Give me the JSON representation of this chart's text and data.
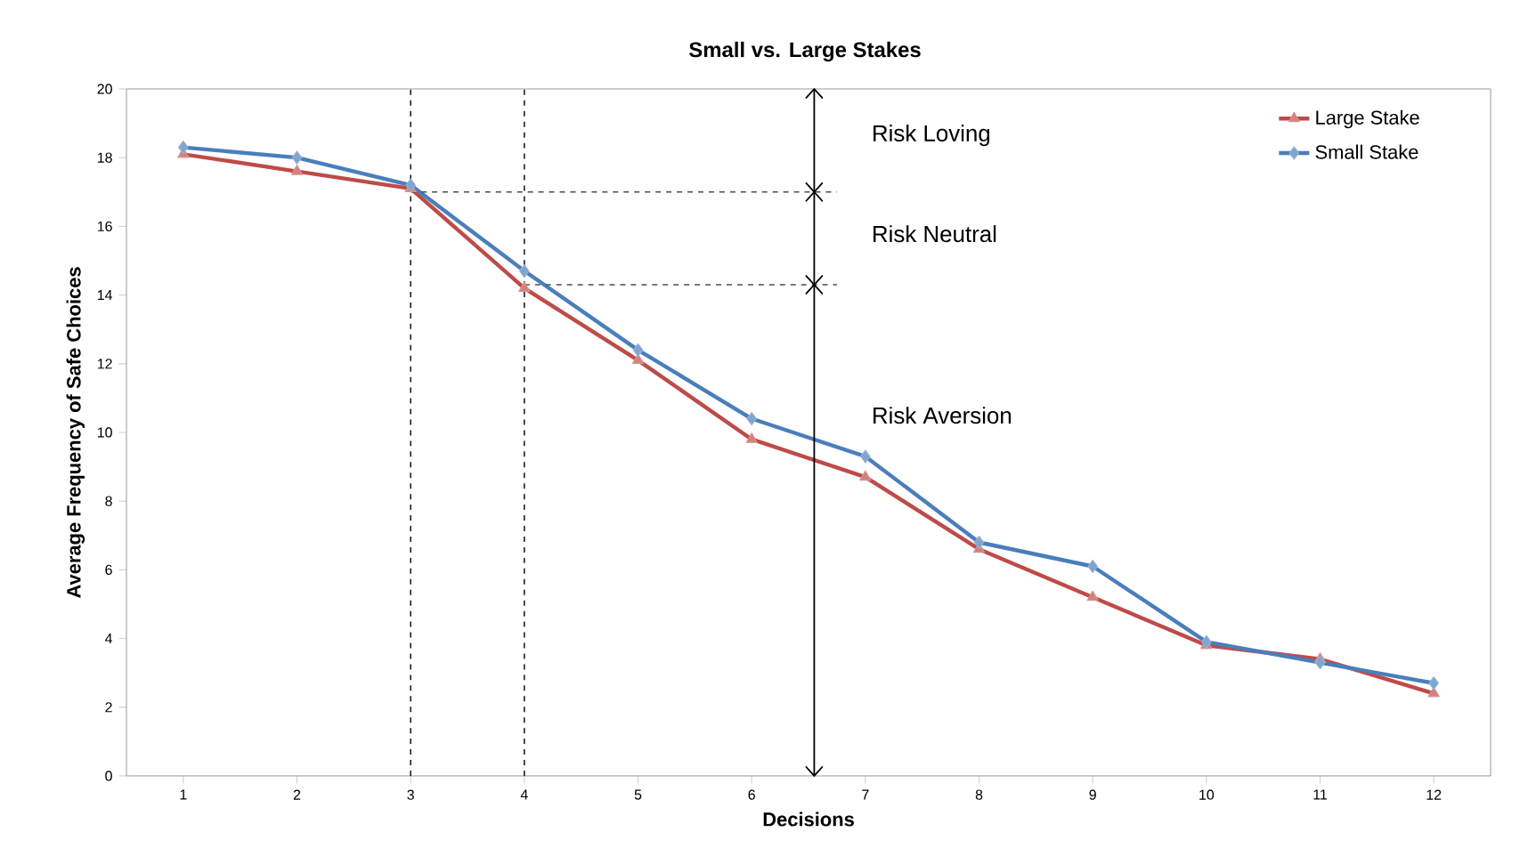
{
  "chart_data": {
    "type": "line",
    "title": "Small vs. Large Stakes",
    "xlabel": "Decisions",
    "ylabel": "Average Frequency of Safe Choices",
    "x": [
      1,
      2,
      3,
      4,
      5,
      6,
      7,
      8,
      9,
      10,
      11,
      12
    ],
    "series": [
      {
        "name": "Large Stake",
        "color": "#be4b48",
        "marker": "triangle",
        "values": [
          18.1,
          17.6,
          17.1,
          14.2,
          12.1,
          9.8,
          8.7,
          6.6,
          5.2,
          3.8,
          3.4,
          2.4
        ]
      },
      {
        "name": "Small Stake",
        "color": "#4a7ebb",
        "marker": "diamond",
        "values": [
          18.3,
          18.0,
          17.2,
          14.7,
          12.4,
          10.4,
          9.3,
          6.8,
          6.1,
          3.9,
          3.3,
          2.7
        ]
      }
    ],
    "xlim": [
      0.5,
      12.5
    ],
    "xticks": [
      1,
      2,
      3,
      4,
      5,
      6,
      7,
      8,
      9,
      10,
      11,
      12
    ],
    "ylim": [
      0,
      20
    ],
    "yticks": [
      0,
      2,
      4,
      6,
      8,
      10,
      12,
      14,
      16,
      18,
      20
    ],
    "ref_lines": [
      {
        "axis": "x",
        "value": 3,
        "line_style": "dashed"
      },
      {
        "axis": "x",
        "value": 4,
        "line_style": "dashed"
      },
      {
        "axis": "x",
        "value": 6.55,
        "line_style": "solid"
      },
      {
        "axis": "y",
        "value": 17,
        "line_style": "dashed"
      },
      {
        "axis": "y",
        "value": 14.3,
        "line_style": "dashed"
      }
    ],
    "annotations": [
      "Risk Loving",
      "Risk Neutral",
      "Risk Aversion"
    ],
    "legend": "top right",
    "grid": false
  }
}
